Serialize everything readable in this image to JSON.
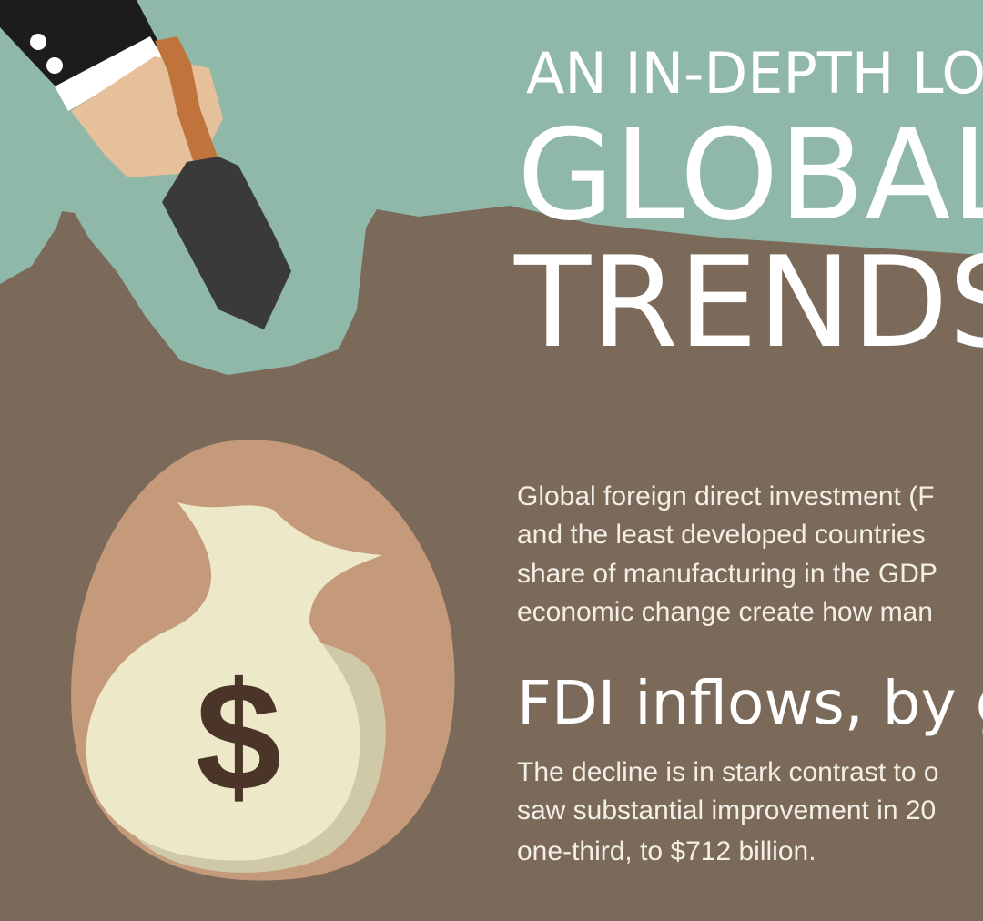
{
  "header": {
    "kicker": "AN IN-DEPTH LO",
    "title_lines": [
      "GLOBAL",
      "TRENDS"
    ]
  },
  "intro": {
    "lines": [
      "Global foreign direct investment (F",
      "and the least developed countries",
      "share of manufacturing in the GDP",
      "economic change create how man"
    ]
  },
  "section": {
    "heading": "FDI inflows, by g",
    "lines": [
      "The decline is in stark contrast to o",
      "saw substantial improvement in 20",
      "one-third, to $712 billion."
    ]
  },
  "illustration": {
    "symbol": "$"
  }
}
